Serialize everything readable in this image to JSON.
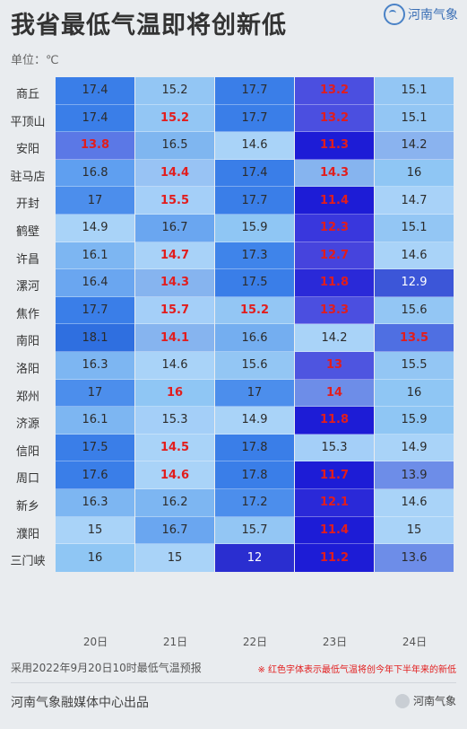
{
  "header": {
    "title": "我省最低气温即将创新低",
    "logo_text": "河南气象",
    "unit": "单位：℃"
  },
  "table": {
    "dates": [
      "20日",
      "21日",
      "22日",
      "23日",
      "24日"
    ],
    "rows": [
      {
        "city": "商丘",
        "values": [
          "17.4",
          "15.2",
          "17.7",
          "13.2",
          "15.1"
        ],
        "red": [
          false,
          false,
          false,
          true,
          false
        ],
        "colors": [
          "#3a7ee8",
          "#93c6f4",
          "#3a7ee8",
          "#4b4fe0",
          "#93c6f4"
        ]
      },
      {
        "city": "平顶山",
        "values": [
          "17.4",
          "15.2",
          "17.7",
          "13.2",
          "15.1"
        ],
        "red": [
          false,
          true,
          false,
          true,
          false
        ],
        "colors": [
          "#3a7ee8",
          "#93c6f4",
          "#3a7ee8",
          "#4b4fe0",
          "#93c6f4"
        ]
      },
      {
        "city": "安阳",
        "values": [
          "13.8",
          "16.5",
          "14.6",
          "11.3",
          "14.2"
        ],
        "red": [
          true,
          false,
          false,
          true,
          false
        ],
        "colors": [
          "#5b78e6",
          "#7fb6f0",
          "#a9d3f8",
          "#1d1cd6",
          "#8ab3ef"
        ]
      },
      {
        "city": "驻马店",
        "values": [
          "16.8",
          "14.4",
          "17.4",
          "14.3",
          "16"
        ],
        "red": [
          false,
          true,
          false,
          true,
          false
        ],
        "colors": [
          "#5f9ff0",
          "#98c3f4",
          "#3a7ee8",
          "#86b4ef",
          "#8fc6f4"
        ]
      },
      {
        "city": "开封",
        "values": [
          "17",
          "15.5",
          "17.7",
          "11.4",
          "14.7"
        ],
        "red": [
          false,
          true,
          false,
          true,
          false
        ],
        "colors": [
          "#4c8eec",
          "#a4cff8",
          "#3a7ee8",
          "#1d1cd6",
          "#a8d2f8"
        ]
      },
      {
        "city": "鹤壁",
        "values": [
          "14.9",
          "16.7",
          "15.9",
          "12.3",
          "15.1"
        ],
        "red": [
          false,
          false,
          false,
          true,
          false
        ],
        "colors": [
          "#a9d3f8",
          "#6aa6f0",
          "#8fc6f4",
          "#3937dd",
          "#93c6f4"
        ]
      },
      {
        "city": "许昌",
        "values": [
          "16.1",
          "14.7",
          "17.3",
          "12.7",
          "14.6"
        ],
        "red": [
          false,
          true,
          false,
          true,
          false
        ],
        "colors": [
          "#7db6f2",
          "#a8d2f8",
          "#3f84ea",
          "#4644dd",
          "#a9d3f8"
        ]
      },
      {
        "city": "漯河",
        "values": [
          "16.4",
          "14.3",
          "17.5",
          "11.8",
          "12.9"
        ],
        "red": [
          false,
          true,
          false,
          true,
          false
        ],
        "colors": [
          "#6aa6f0",
          "#86b4ef",
          "#3a7ee8",
          "#2a29d8",
          "#3c56d8"
        ]
      },
      {
        "city": "焦作",
        "values": [
          "17.7",
          "15.7",
          "15.2",
          "13.3",
          "15.6"
        ],
        "red": [
          false,
          true,
          true,
          true,
          false
        ],
        "colors": [
          "#3a7ee8",
          "#a4cff8",
          "#93c6f4",
          "#4b4fe0",
          "#93c6f4"
        ]
      },
      {
        "city": "南阳",
        "values": [
          "18.1",
          "14.1",
          "16.6",
          "14.2",
          "13.5"
        ],
        "red": [
          false,
          true,
          false,
          false,
          true
        ],
        "colors": [
          "#2f6fe0",
          "#86b4ef",
          "#74aef0",
          "#a9d3f8",
          "#4f6fe2"
        ]
      },
      {
        "city": "洛阳",
        "values": [
          "16.3",
          "14.6",
          "15.6",
          "13",
          "15.5"
        ],
        "red": [
          false,
          false,
          false,
          true,
          false
        ],
        "colors": [
          "#7db6f2",
          "#a9d3f8",
          "#93c6f4",
          "#4e55e0",
          "#93c6f4"
        ]
      },
      {
        "city": "郑州",
        "values": [
          "17",
          "16",
          "17",
          "14",
          "16"
        ],
        "red": [
          false,
          true,
          false,
          true,
          false
        ],
        "colors": [
          "#4c8eec",
          "#8fc6f4",
          "#4c8eec",
          "#6d8de8",
          "#8fc6f4"
        ]
      },
      {
        "city": "济源",
        "values": [
          "16.1",
          "15.3",
          "14.9",
          "11.8",
          "15.9"
        ],
        "red": [
          false,
          false,
          false,
          true,
          false
        ],
        "colors": [
          "#7db6f2",
          "#a4cff8",
          "#a9d3f8",
          "#1d1cd6",
          "#8fc6f4"
        ]
      },
      {
        "city": "信阳",
        "values": [
          "17.5",
          "14.5",
          "17.8",
          "15.3",
          "14.9"
        ],
        "red": [
          false,
          true,
          false,
          false,
          false
        ],
        "colors": [
          "#3a7ee8",
          "#a9d3f8",
          "#3a7ee8",
          "#a4cff8",
          "#a9d3f8"
        ]
      },
      {
        "city": "周口",
        "values": [
          "17.6",
          "14.6",
          "17.8",
          "11.7",
          "13.9"
        ],
        "red": [
          false,
          true,
          false,
          true,
          false
        ],
        "colors": [
          "#3a7ee8",
          "#a9d3f8",
          "#3a7ee8",
          "#1d1cd6",
          "#6d8de8"
        ]
      },
      {
        "city": "新乡",
        "values": [
          "16.3",
          "16.2",
          "17.2",
          "12.1",
          "14.6"
        ],
        "red": [
          false,
          false,
          false,
          true,
          false
        ],
        "colors": [
          "#7db6f2",
          "#7db6f2",
          "#4c8eec",
          "#2a29d8",
          "#a9d3f8"
        ]
      },
      {
        "city": "濮阳",
        "values": [
          "15",
          "16.7",
          "15.7",
          "11.4",
          "15"
        ],
        "red": [
          false,
          false,
          false,
          true,
          false
        ],
        "colors": [
          "#a9d3f8",
          "#6aa6f0",
          "#93c6f4",
          "#1d1cd6",
          "#a9d3f8"
        ]
      },
      {
        "city": "三门峡",
        "values": [
          "16",
          "15",
          "12",
          "11.2",
          "13.6"
        ],
        "red": [
          false,
          false,
          false,
          true,
          false
        ],
        "colors": [
          "#8fc6f4",
          "#a9d3f8",
          "#2a2ed0",
          "#1d1cd6",
          "#6d8de8"
        ]
      }
    ]
  },
  "footer": {
    "source": "采用2022年9月20日10时最低气温预报",
    "note": "※ 红色字体表示最低气温将创今年下半年来的新低",
    "publisher": "河南气象融媒体中心出品",
    "wechat": "河南气象"
  }
}
